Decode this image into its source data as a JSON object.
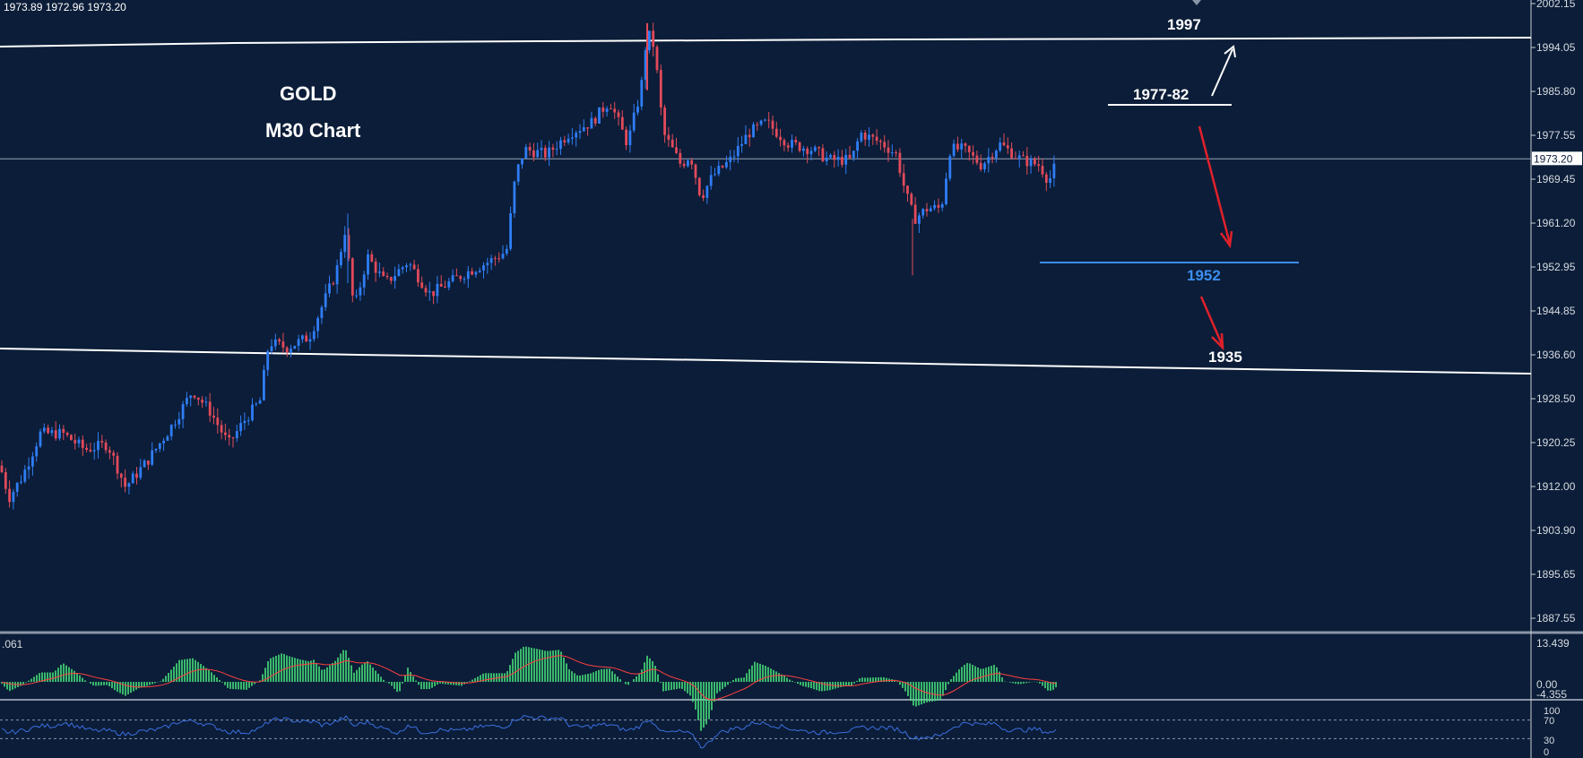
{
  "header": {
    "ohlc_text": "1973.89 1972.96 1973.20"
  },
  "annotations": {
    "symbol": "GOLD",
    "timeframe": "M30 Chart",
    "level_1997": "1997",
    "level_1977_82": "1977-82",
    "level_1952": "1952",
    "level_1935": "1935"
  },
  "price_axis": {
    "ticks": [
      "2002.15",
      "1994.05",
      "1985.80",
      "1977.55",
      "1969.45",
      "1961.20",
      "1952.95",
      "1944.85",
      "1936.60",
      "1928.50",
      "1920.25",
      "1912.00",
      "1903.90",
      "1895.65",
      "1887.55"
    ],
    "current_price": "1973.20"
  },
  "oscillator": {
    "value_label": ".061",
    "axis_labels": [
      "13.439",
      "0.00",
      "-4.355"
    ]
  },
  "rsi": {
    "axis_labels": [
      "100",
      "70",
      "30",
      "0"
    ]
  },
  "colors": {
    "background": "#0b1d38",
    "bull": "#2f7df6",
    "bear": "#e24a5a",
    "level_line": "#ffffff",
    "support_line": "#3b8ef0",
    "arrow_down": "#e0212b",
    "histogram": "#46e07a",
    "signal": "#ff4040",
    "rsi_line": "#3b6fe0"
  },
  "chart_data": {
    "type": "candlestick",
    "title": "GOLD M30 Chart",
    "ylim": [
      1883,
      2004
    ],
    "price_path": [
      [
        0,
        1916
      ],
      [
        10,
        1910
      ],
      [
        25,
        1914
      ],
      [
        45,
        1922
      ],
      [
        70,
        1922
      ],
      [
        95,
        1919
      ],
      [
        120,
        1920
      ],
      [
        140,
        1912
      ],
      [
        165,
        1917
      ],
      [
        190,
        1923
      ],
      [
        215,
        1930
      ],
      [
        235,
        1926
      ],
      [
        255,
        1920
      ],
      [
        275,
        1925
      ],
      [
        290,
        1928
      ],
      [
        300,
        1939
      ],
      [
        320,
        1938
      ],
      [
        345,
        1940
      ],
      [
        360,
        1946
      ],
      [
        375,
        1952
      ],
      [
        385,
        1960
      ],
      [
        395,
        1945
      ],
      [
        410,
        1955
      ],
      [
        430,
        1950
      ],
      [
        455,
        1954
      ],
      [
        480,
        1948
      ],
      [
        500,
        1950
      ],
      [
        520,
        1952
      ],
      [
        545,
        1954
      ],
      [
        565,
        1956
      ],
      [
        575,
        1970
      ],
      [
        585,
        1975
      ],
      [
        610,
        1974
      ],
      [
        635,
        1978
      ],
      [
        660,
        1980
      ],
      [
        680,
        1984
      ],
      [
        700,
        1976
      ],
      [
        715,
        1986
      ],
      [
        722,
        1997
      ],
      [
        730,
        1994
      ],
      [
        740,
        1978
      ],
      [
        760,
        1972
      ],
      [
        770,
        1974
      ],
      [
        782,
        1966
      ],
      [
        795,
        1970
      ],
      [
        815,
        1973
      ],
      [
        835,
        1978
      ],
      [
        855,
        1980
      ],
      [
        880,
        1976
      ],
      [
        905,
        1975
      ],
      [
        925,
        1973
      ],
      [
        950,
        1973
      ],
      [
        960,
        1978
      ],
      [
        985,
        1976
      ],
      [
        1000,
        1974
      ],
      [
        1010,
        1967
      ],
      [
        1020,
        1962
      ],
      [
        1035,
        1964
      ],
      [
        1050,
        1964
      ],
      [
        1060,
        1975
      ],
      [
        1075,
        1975
      ],
      [
        1095,
        1972
      ],
      [
        1115,
        1976
      ],
      [
        1140,
        1973
      ],
      [
        1160,
        1972
      ],
      [
        1170,
        1969
      ],
      [
        1180,
        1973
      ]
    ],
    "lines": [
      {
        "label": "1997",
        "price": 1997
      },
      {
        "label": "1977-82",
        "price": 1982
      },
      {
        "label": "1952",
        "price": 1952
      },
      {
        "label": "1935",
        "price": 1935
      }
    ],
    "oscillator_range": [
      -4.355,
      13.439
    ],
    "rsi_range": [
      0,
      100
    ]
  }
}
